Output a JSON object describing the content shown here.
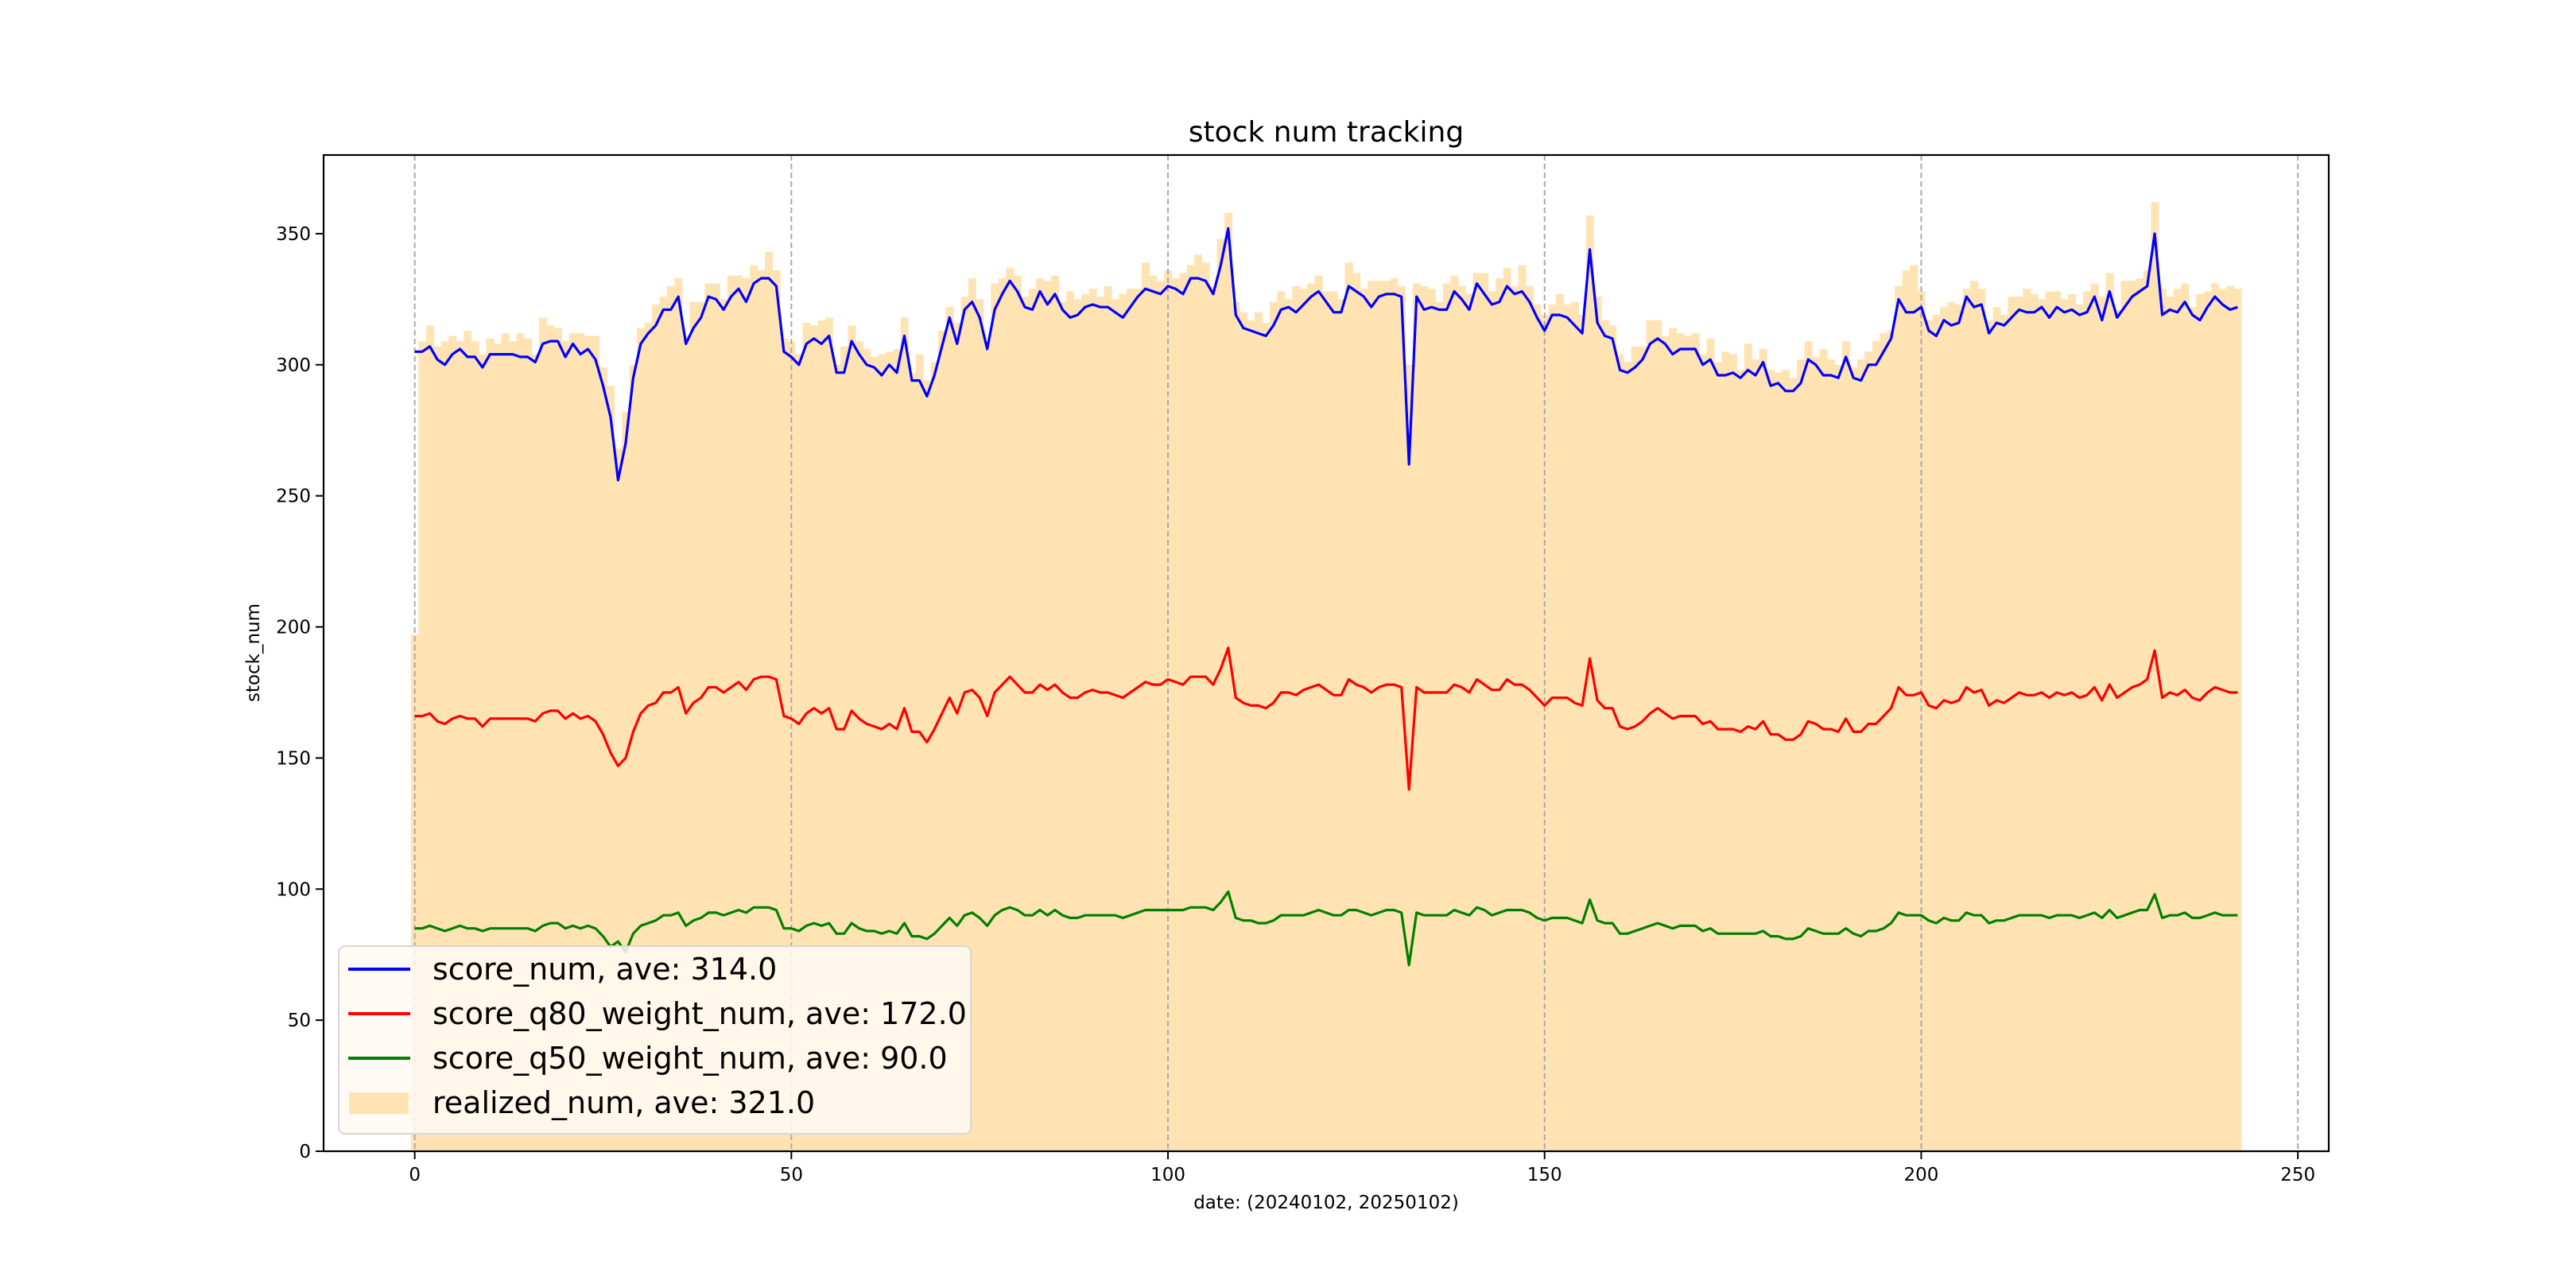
{
  "chart_data": {
    "type": "bar+line",
    "title": "stock num tracking",
    "xlabel": "date: (20240102, 20250102)",
    "ylabel": "stock_num",
    "xlim": [
      -12.1,
      254.1
    ],
    "ylim": [
      0,
      380
    ],
    "xticks": [
      0,
      50,
      100,
      150,
      200,
      250
    ],
    "yticks": [
      0,
      50,
      100,
      150,
      200,
      250,
      300,
      350
    ],
    "vertical_dashed_gridlines_at": [
      0,
      50,
      100,
      150,
      200,
      250
    ],
    "legend_position": "lower-left",
    "colors": {
      "score_num": "#0000ff",
      "score_q80_weight_num": "#ff0000",
      "score_q50_weight_num": "#008000",
      "realized_num": "#ffe3b3",
      "grid": "#aaaaaa"
    },
    "legend": [
      {
        "key": "score_num",
        "label": "score_num, ave: 314.0",
        "kind": "line"
      },
      {
        "key": "score_q80_weight_num",
        "label": "score_q80_weight_num, ave: 172.0",
        "kind": "line"
      },
      {
        "key": "score_q50_weight_num",
        "label": "score_q50_weight_num, ave: 90.0",
        "kind": "line"
      },
      {
        "key": "realized_num",
        "label": "realized_num, ave: 321.0",
        "kind": "bar"
      }
    ],
    "series": {
      "realized_num": [
        197,
        309,
        315,
        307,
        309,
        311,
        309,
        313,
        309,
        304,
        310,
        308,
        312,
        309,
        312,
        310,
        304,
        318,
        315,
        314,
        309,
        312,
        312,
        311,
        311,
        299,
        292,
        268,
        282,
        300,
        314,
        316,
        323,
        326,
        330,
        333,
        311,
        324,
        324,
        331,
        331,
        325,
        334,
        334,
        333,
        338,
        336,
        343,
        336,
        310,
        309,
        304,
        316,
        315,
        317,
        318,
        300,
        307,
        315,
        309,
        306,
        303,
        304,
        305,
        306,
        318,
        297,
        304,
        294,
        301,
        313,
        322,
        316,
        326,
        333,
        325,
        309,
        331,
        333,
        337,
        334,
        326,
        329,
        333,
        332,
        334,
        324,
        328,
        325,
        327,
        329,
        326,
        330,
        325,
        327,
        329,
        329,
        339,
        334,
        332,
        336,
        333,
        335,
        338,
        342,
        339,
        330,
        348,
        358,
        324,
        320,
        317,
        320,
        316,
        324,
        328,
        325,
        330,
        329,
        331,
        334,
        328,
        328,
        325,
        339,
        335,
        329,
        332,
        332,
        332,
        333,
        330,
        300,
        331,
        330,
        329,
        324,
        331,
        334,
        330,
        327,
        335,
        335,
        328,
        333,
        337,
        330,
        338,
        330,
        323,
        319,
        323,
        327,
        323,
        324,
        319,
        357,
        326,
        317,
        315,
        304,
        301,
        307,
        307,
        317,
        317,
        311,
        314,
        312,
        311,
        312,
        304,
        310,
        301,
        305,
        304,
        298,
        308,
        302,
        306,
        298,
        297,
        298,
        295,
        302,
        309,
        303,
        306,
        302,
        300,
        309,
        299,
        302,
        305,
        309,
        312,
        313,
        330,
        336,
        338,
        328,
        317,
        319,
        322,
        324,
        323,
        329,
        332,
        329,
        317,
        322,
        319,
        326,
        326,
        329,
        327,
        325,
        328,
        328,
        325,
        327,
        323,
        328,
        331,
        326,
        335,
        321,
        332,
        332,
        333,
        336,
        362,
        329,
        326,
        329,
        331,
        322,
        327,
        328,
        331,
        329,
        330,
        329
      ],
      "score_num": [
        305,
        305,
        307,
        302,
        300,
        304,
        306,
        303,
        303,
        299,
        304,
        304,
        304,
        304,
        303,
        303,
        301,
        308,
        309,
        309,
        303,
        308,
        304,
        306,
        302,
        292,
        280,
        256,
        270,
        295,
        308,
        312,
        315,
        321,
        321,
        326,
        308,
        314,
        318,
        326,
        325,
        321,
        326,
        329,
        324,
        331,
        333,
        333,
        330,
        305,
        303,
        300,
        308,
        310,
        308,
        311,
        297,
        297,
        309,
        304,
        300,
        299,
        296,
        300,
        297,
        311,
        294,
        294,
        288,
        296,
        307,
        318,
        308,
        321,
        324,
        318,
        306,
        321,
        327,
        332,
        328,
        322,
        321,
        328,
        323,
        327,
        321,
        318,
        319,
        322,
        323,
        322,
        322,
        320,
        318,
        322,
        326,
        329,
        328,
        327,
        330,
        329,
        327,
        333,
        333,
        332,
        327,
        338,
        352,
        319,
        314,
        313,
        312,
        311,
        315,
        321,
        322,
        320,
        323,
        326,
        328,
        324,
        320,
        320,
        330,
        328,
        326,
        322,
        326,
        327,
        327,
        326,
        262,
        326,
        321,
        322,
        321,
        321,
        328,
        325,
        321,
        331,
        327,
        323,
        324,
        330,
        327,
        328,
        324,
        318,
        313,
        319,
        319,
        318,
        315,
        312,
        344,
        316,
        311,
        310,
        298,
        297,
        299,
        302,
        308,
        310,
        308,
        304,
        306,
        306,
        306,
        300,
        302,
        296,
        296,
        297,
        295,
        298,
        296,
        301,
        292,
        293,
        290,
        290,
        293,
        302,
        300,
        296,
        296,
        295,
        303,
        295,
        294,
        300,
        300,
        305,
        310,
        325,
        320,
        320,
        322,
        313,
        311,
        317,
        315,
        316,
        326,
        322,
        323,
        312,
        316,
        315,
        318,
        321,
        320,
        320,
        322,
        318,
        322,
        320,
        321,
        319,
        320,
        326,
        317,
        328,
        318,
        322,
        326,
        328,
        330,
        350,
        319,
        321,
        320,
        324,
        319,
        317,
        322,
        326,
        323,
        321,
        322
      ],
      "score_q80_weight_num": [
        166,
        166,
        167,
        164,
        163,
        165,
        166,
        165,
        165,
        162,
        165,
        165,
        165,
        165,
        165,
        165,
        164,
        167,
        168,
        168,
        165,
        167,
        165,
        166,
        164,
        159,
        152,
        147,
        150,
        160,
        167,
        170,
        171,
        175,
        175,
        177,
        167,
        171,
        173,
        177,
        177,
        175,
        177,
        179,
        176,
        180,
        181,
        181,
        180,
        166,
        165,
        163,
        167,
        169,
        167,
        169,
        161,
        161,
        168,
        165,
        163,
        162,
        161,
        163,
        161,
        169,
        160,
        160,
        156,
        161,
        167,
        173,
        167,
        175,
        176,
        173,
        166,
        175,
        178,
        181,
        178,
        175,
        175,
        178,
        176,
        178,
        175,
        173,
        173,
        175,
        176,
        175,
        175,
        174,
        173,
        175,
        177,
        179,
        178,
        178,
        180,
        179,
        178,
        181,
        181,
        181,
        178,
        184,
        192,
        173,
        171,
        170,
        170,
        169,
        171,
        175,
        175,
        174,
        176,
        177,
        178,
        176,
        174,
        174,
        180,
        178,
        177,
        175,
        177,
        178,
        178,
        177,
        138,
        177,
        175,
        175,
        175,
        175,
        178,
        177,
        175,
        180,
        178,
        176,
        176,
        180,
        178,
        178,
        176,
        173,
        170,
        173,
        173,
        173,
        171,
        170,
        188,
        172,
        169,
        169,
        162,
        161,
        162,
        164,
        167,
        169,
        167,
        165,
        166,
        166,
        166,
        163,
        164,
        161,
        161,
        161,
        160,
        162,
        161,
        164,
        159,
        159,
        157,
        157,
        159,
        164,
        163,
        161,
        161,
        160,
        165,
        160,
        160,
        163,
        163,
        166,
        169,
        177,
        174,
        174,
        175,
        170,
        169,
        172,
        171,
        172,
        177,
        175,
        176,
        170,
        172,
        171,
        173,
        175,
        174,
        174,
        175,
        173,
        175,
        174,
        175,
        173,
        174,
        177,
        172,
        178,
        173,
        175,
        177,
        178,
        180,
        191,
        173,
        175,
        174,
        176,
        173,
        172,
        175,
        177,
        176,
        175,
        175
      ],
      "score_q50_weight_num": [
        85,
        85,
        86,
        85,
        84,
        85,
        86,
        85,
        85,
        84,
        85,
        85,
        85,
        85,
        85,
        85,
        84,
        86,
        87,
        87,
        85,
        86,
        85,
        86,
        85,
        82,
        78,
        80,
        76,
        83,
        86,
        87,
        88,
        90,
        90,
        91,
        86,
        88,
        89,
        91,
        91,
        90,
        91,
        92,
        91,
        93,
        93,
        93,
        92,
        85,
        85,
        84,
        86,
        87,
        86,
        87,
        83,
        83,
        87,
        85,
        84,
        84,
        83,
        84,
        83,
        87,
        82,
        82,
        81,
        83,
        86,
        89,
        86,
        90,
        91,
        89,
        86,
        90,
        92,
        93,
        92,
        90,
        90,
        92,
        90,
        92,
        90,
        89,
        89,
        90,
        90,
        90,
        90,
        90,
        89,
        90,
        91,
        92,
        92,
        92,
        92,
        92,
        92,
        93,
        93,
        93,
        92,
        95,
        99,
        89,
        88,
        88,
        87,
        87,
        88,
        90,
        90,
        90,
        90,
        91,
        92,
        91,
        90,
        90,
        92,
        92,
        91,
        90,
        91,
        92,
        92,
        91,
        71,
        91,
        90,
        90,
        90,
        90,
        92,
        91,
        90,
        93,
        92,
        90,
        91,
        92,
        92,
        92,
        91,
        89,
        88,
        89,
        89,
        89,
        88,
        87,
        96,
        88,
        87,
        87,
        83,
        83,
        84,
        85,
        86,
        87,
        86,
        85,
        86,
        86,
        86,
        84,
        85,
        83,
        83,
        83,
        83,
        83,
        83,
        84,
        82,
        82,
        81,
        81,
        82,
        85,
        84,
        83,
        83,
        83,
        85,
        83,
        82,
        84,
        84,
        85,
        87,
        91,
        90,
        90,
        90,
        88,
        87,
        89,
        88,
        88,
        91,
        90,
        90,
        87,
        88,
        88,
        89,
        90,
        90,
        90,
        90,
        89,
        90,
        90,
        90,
        89,
        90,
        91,
        89,
        92,
        89,
        90,
        91,
        92,
        92,
        98,
        89,
        90,
        90,
        91,
        89,
        89,
        90,
        91,
        90,
        90,
        90
      ]
    }
  }
}
